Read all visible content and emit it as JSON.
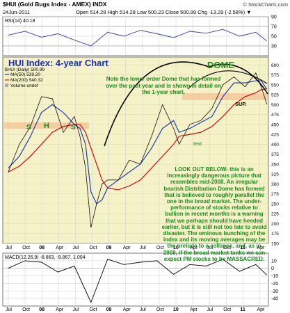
{
  "header": {
    "symbol": "$HUI (Gold Bugs Index - AMEX) INDX",
    "source": "© StockCharts.com",
    "date": "24Jun-2011",
    "quote": "Open 514.28  High 514.28  Low 500.23  Close 500.99  Chg -13.29 (-2.58%) ▼"
  },
  "colors": {
    "panel_bg": "#f5f2c8",
    "price": "#111111",
    "ma50": "#1f3fae",
    "ma200": "#d11a1a",
    "rsi": "#3a3aa8",
    "dome": "#000000",
    "annotation": "#1a8c1a",
    "title_blue": "#1a2fb0",
    "support_band": "#f3c79a"
  },
  "chart_data": [
    {
      "type": "line",
      "name": "RSI panel",
      "legend": "RSI(14) 40.18",
      "ylim": [
        10,
        90
      ],
      "yticks": [
        30,
        50,
        70,
        90
      ],
      "x": [
        "2007-07",
        "2007-10",
        "2008-01",
        "2008-04",
        "2008-07",
        "2008-10",
        "2009-01",
        "2009-04",
        "2009-07",
        "2009-10",
        "2010-01",
        "2010-04",
        "2010-07",
        "2010-10",
        "2011-01",
        "2011-04",
        "2011-06"
      ],
      "values": [
        52,
        60,
        48,
        55,
        42,
        30,
        58,
        50,
        62,
        55,
        47,
        60,
        56,
        64,
        50,
        58,
        40
      ]
    },
    {
      "type": "line",
      "name": "Price panel",
      "legend": [
        "$HUI (Daily) 500.99",
        "MA(50) 539.20",
        "MA(200) 540.32",
        "Volume undef"
      ],
      "title": "HUI Index: 4-year Chart",
      "ylim": [
        150,
        620
      ],
      "yticks": [
        150,
        175,
        200,
        225,
        250,
        275,
        300,
        325,
        350,
        375,
        400,
        425,
        450,
        475,
        500,
        525,
        550,
        575,
        600
      ],
      "xticks": [
        "Jul",
        "Oct",
        "08",
        "Apr",
        "Jul",
        "Oct",
        "09",
        "Apr",
        "Jul",
        "Oct",
        "10",
        "Apr",
        "Jul",
        "Oct",
        "11",
        "Apr"
      ],
      "x": [
        "2007-07",
        "2007-09",
        "2007-11",
        "2008-01",
        "2008-03",
        "2008-05",
        "2008-07",
        "2008-08",
        "2008-09",
        "2008-10",
        "2008-11",
        "2008-12",
        "2009-01",
        "2009-03",
        "2009-05",
        "2009-07",
        "2009-09",
        "2009-11",
        "2010-01",
        "2010-02",
        "2010-04",
        "2010-06",
        "2010-08",
        "2010-10",
        "2010-12",
        "2011-02",
        "2011-04",
        "2011-05",
        "2011-06"
      ],
      "series": [
        {
          "name": "$HUI",
          "values": [
            330,
            400,
            445,
            520,
            515,
            430,
            470,
            420,
            340,
            190,
            250,
            300,
            310,
            310,
            360,
            350,
            420,
            500,
            440,
            400,
            450,
            460,
            490,
            550,
            570,
            545,
            580,
            545,
            501
          ]
        },
        {
          "name": "MA(50)",
          "values": [
            340,
            370,
            420,
            480,
            500,
            480,
            450,
            440,
            400,
            280,
            250,
            260,
            290,
            310,
            330,
            350,
            390,
            440,
            460,
            430,
            440,
            455,
            470,
            520,
            555,
            555,
            560,
            560,
            539
          ]
        },
        {
          "name": "MA(200)",
          "values": [
            330,
            345,
            370,
            400,
            430,
            445,
            450,
            450,
            430,
            390,
            350,
            310,
            290,
            285,
            295,
            310,
            340,
            370,
            400,
            420,
            425,
            430,
            445,
            470,
            500,
            520,
            530,
            538,
            540
          ]
        }
      ]
    },
    {
      "type": "line",
      "name": "MACD panel",
      "legend": "MACD(12,26,9) -8.863, -9.867, 1.004",
      "ylim": [
        -50,
        20
      ],
      "yticks": [
        10,
        0,
        -10,
        -20,
        -30,
        -40
      ],
      "x": [
        "2007-07",
        "2007-10",
        "2008-01",
        "2008-04",
        "2008-07",
        "2008-10",
        "2009-01",
        "2009-04",
        "2009-07",
        "2009-10",
        "2010-01",
        "2010-04",
        "2010-07",
        "2010-10",
        "2011-01",
        "2011-04",
        "2011-06"
      ],
      "values": [
        0,
        10,
        8,
        -5,
        3,
        -45,
        12,
        5,
        8,
        10,
        -8,
        5,
        3,
        12,
        -4,
        5,
        -9
      ]
    }
  ],
  "annotations": {
    "note": "Note the lower order Dome that has formed over the past year and is shown in detail on the 1-year chart.",
    "dome": "DOME",
    "sup": "SUP.",
    "head": "H",
    "shoulder": "S",
    "text_label": "text",
    "look_out": "LOOK OUT BELOW- this is an increasingly dangerous picture that resembles mid-2008. An irregular bearish Distribution Dome has formed that is believed to roughly parallel the one in the broad market. The under-performance of stocks relative to bullion in recent months is a warning that we perhaps should have heeded earlier, but it is still not too late to avoid disaster. The ominous bunching of the index and its moving averages may be the prelude to a collapse, and, as in 2008, if the broad market tanks we can expect PM stocks to be MASSACRED."
  }
}
